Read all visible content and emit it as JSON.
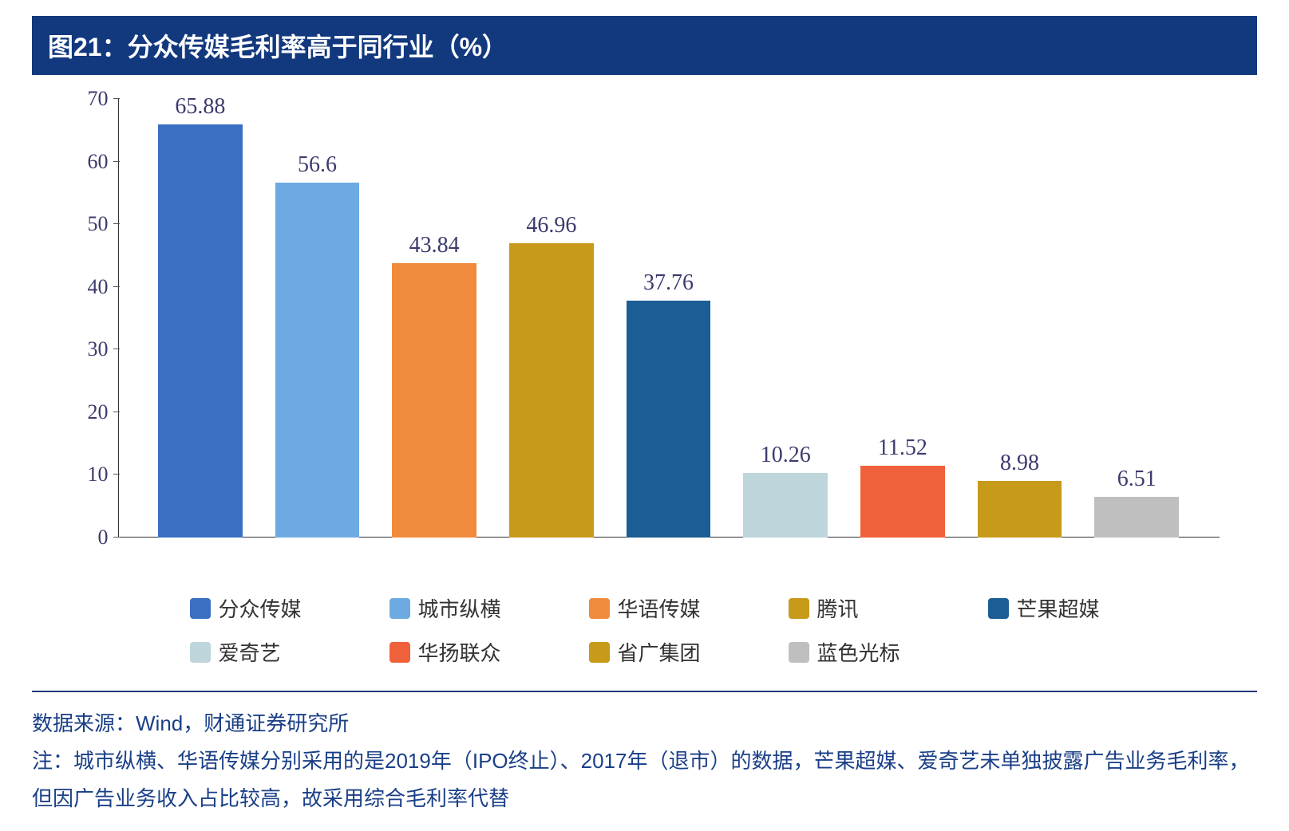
{
  "title": "图21：分众传媒毛利率高于同行业（%）",
  "chart": {
    "type": "bar",
    "ylim": [
      0,
      70
    ],
    "ytick_step": 10,
    "yticks": [
      0,
      10,
      20,
      30,
      40,
      50,
      60,
      70
    ],
    "axis_color": "#333333",
    "tick_label_color": "#3b3b6d",
    "tick_label_fontsize": 26,
    "data_label_fontsize": 28,
    "bar_width_ratio": 0.72,
    "background_color": "#ffffff",
    "series": [
      {
        "name": "分众传媒",
        "value": 65.88,
        "color": "#3a6fc2"
      },
      {
        "name": "城市纵横",
        "value": 56.6,
        "color": "#6eaae2"
      },
      {
        "name": "华语传媒",
        "value": 43.84,
        "color": "#f08a3c"
      },
      {
        "name": "腾讯",
        "value": 46.96,
        "color": "#c89a19"
      },
      {
        "name": "芒果超媒",
        "value": 37.76,
        "color": "#1b5d94"
      },
      {
        "name": "爱奇艺",
        "value": 10.26,
        "color": "#bed6db"
      },
      {
        "name": "华扬联众",
        "value": 11.52,
        "color": "#ef613a"
      },
      {
        "name": "省广集团",
        "value": 8.98,
        "color": "#c89a19"
      },
      {
        "name": "蓝色光标",
        "value": 6.51,
        "color": "#bfbfbf"
      }
    ]
  },
  "legend": {
    "swatch_radius": 4,
    "swatch_size": 26,
    "fontsize": 26,
    "rows": [
      [
        {
          "name": "分众传媒",
          "color": "#3a6fc2"
        },
        {
          "name": "城市纵横",
          "color": "#6eaae2"
        },
        {
          "name": "华语传媒",
          "color": "#f08a3c"
        },
        {
          "name": "腾讯",
          "color": "#c89a19"
        },
        {
          "name": "芒果超媒",
          "color": "#1b5d94"
        }
      ],
      [
        {
          "name": "爱奇艺",
          "color": "#bed6db"
        },
        {
          "name": "华扬联众",
          "color": "#ef613a"
        },
        {
          "name": "省广集团",
          "color": "#c89a19"
        },
        {
          "name": "蓝色光标",
          "color": "#bfbfbf"
        }
      ]
    ]
  },
  "footer": {
    "divider_color": "#203a7a",
    "text_color": "#1a3f87",
    "fontsize": 26,
    "source": "数据来源：Wind，财通证券研究所",
    "note": "注：城市纵横、华语传媒分别采用的是2019年（IPO终止）、2017年（退市）的数据，芒果超媒、爱奇艺未单独披露广告业务毛利率，但因广告业务收入占比较高，故采用综合毛利率代替"
  }
}
